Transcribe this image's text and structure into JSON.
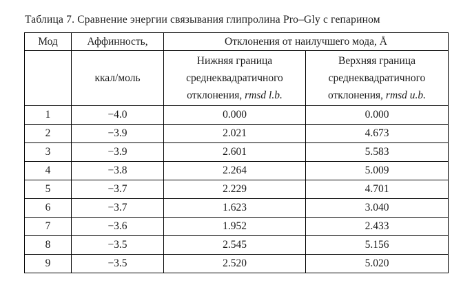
{
  "caption": "Таблица 7. Сравнение энергии связывания глипролина Pro–Gly с гепарином",
  "table": {
    "header": {
      "mode": "Мод",
      "affinity_top": "Аффинность,",
      "affinity_bottom": "ккал/моль",
      "deviation_group": "Отклонения от наилучшего мода, Å",
      "lower": {
        "line1": "Нижняя граница",
        "line2": "среднеквадратичного",
        "line3_text": "отклонения,",
        "line3_italic": "rmsd l.b."
      },
      "upper": {
        "line1": "Верхняя граница",
        "line2": "среднеквадратичного",
        "line3_text": "отклонения,",
        "line3_italic": "rmsd u.b."
      }
    },
    "rows": [
      {
        "mode": "1",
        "affinity": "−4.0",
        "rmsd_lb": "0.000",
        "rmsd_ub": "0.000"
      },
      {
        "mode": "2",
        "affinity": "−3.9",
        "rmsd_lb": "2.021",
        "rmsd_ub": "4.673"
      },
      {
        "mode": "3",
        "affinity": "−3.9",
        "rmsd_lb": "2.601",
        "rmsd_ub": "5.583"
      },
      {
        "mode": "4",
        "affinity": "−3.8",
        "rmsd_lb": "2.264",
        "rmsd_ub": "5.009"
      },
      {
        "mode": "5",
        "affinity": "−3.7",
        "rmsd_lb": "2.229",
        "rmsd_ub": "4.701"
      },
      {
        "mode": "6",
        "affinity": "−3.7",
        "rmsd_lb": "1.623",
        "rmsd_ub": "3.040"
      },
      {
        "mode": "7",
        "affinity": "−3.6",
        "rmsd_lb": "1.952",
        "rmsd_ub": "2.433"
      },
      {
        "mode": "8",
        "affinity": "−3.5",
        "rmsd_lb": "2.545",
        "rmsd_ub": "5.156"
      },
      {
        "mode": "9",
        "affinity": "−3.5",
        "rmsd_lb": "2.520",
        "rmsd_ub": "5.020"
      }
    ]
  }
}
